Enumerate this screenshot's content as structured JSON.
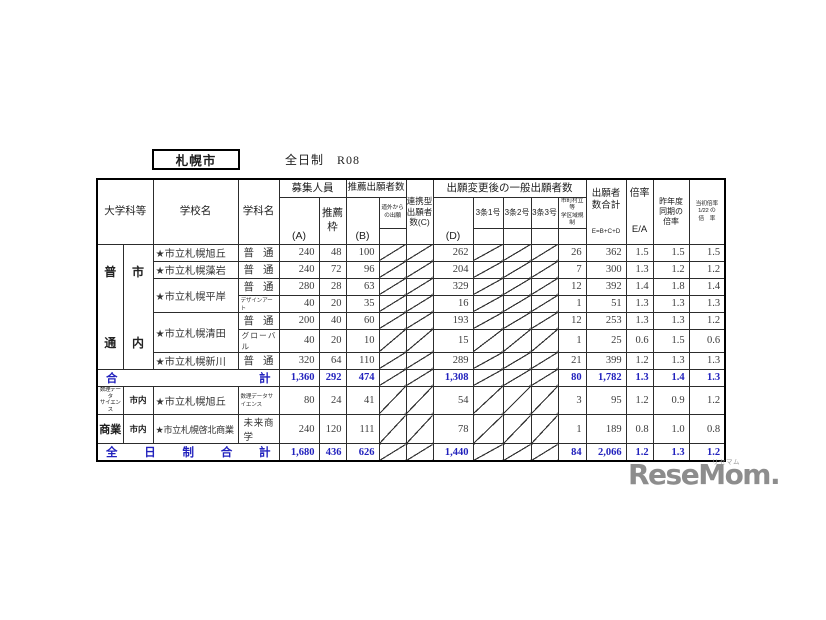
{
  "title": {
    "region": "札幌市",
    "note": "全日制　R08"
  },
  "colors": {
    "total_blue": "#2222bd",
    "border_black": "#2c2c2c",
    "logo_gray": "#8d8d8d"
  },
  "header": {
    "dept": "大学科等",
    "school": "学校名",
    "subject": "学科名",
    "recruit": "募集人員",
    "recruit_a": "(A)",
    "suisen_waku": "推薦\n枠",
    "suisen_count": "推薦出願者数",
    "suisen_b": "(B)",
    "dogai": "道外から\nの出願",
    "renkei": "連携型\n出願者\n数(C)",
    "after_change": "出願変更後の一般出願者数",
    "d": "(D)",
    "jo1": "3条1号",
    "jo2": "3条2号",
    "jo3": "3条3号",
    "municipal": "市町村立等\n学区域規制",
    "total": "出願者\n数合計",
    "total_formula": "E=B+C+D",
    "ratio": "倍率",
    "ratio_formula": "E/A",
    "last_year": "昨年度\n同期の\n倍率",
    "initial": "当初倍率\n1/22 の\n倍　率"
  },
  "groups": {
    "futsu_dept": "普通",
    "futsu_area": "市内"
  },
  "rows": [
    {
      "school": "★市立札幌旭丘",
      "subject": "普通",
      "a": "240",
      "waku": "48",
      "b": "100",
      "d": "262",
      "city": "26",
      "e": "362",
      "ea": "1.5",
      "last": "1.5",
      "init": "1.5"
    },
    {
      "school": "★市立札幌藻岩",
      "subject": "普通",
      "a": "240",
      "waku": "72",
      "b": "96",
      "d": "204",
      "city": "7",
      "e": "300",
      "ea": "1.3",
      "last": "1.2",
      "init": "1.2"
    },
    {
      "school": "★市立札幌平岸",
      "subject": "普通",
      "a": "280",
      "waku": "28",
      "b": "63",
      "d": "329",
      "city": "12",
      "e": "392",
      "ea": "1.4",
      "last": "1.8",
      "init": "1.4"
    },
    {
      "subject": "デザインアート",
      "a": "40",
      "waku": "20",
      "b": "35",
      "d": "16",
      "city": "1",
      "e": "51",
      "ea": "1.3",
      "last": "1.3",
      "init": "1.3"
    },
    {
      "school": "★市立札幌清田",
      "subject": "普通",
      "a": "200",
      "waku": "40",
      "b": "60",
      "d": "193",
      "city": "12",
      "e": "253",
      "ea": "1.3",
      "last": "1.3",
      "init": "1.2"
    },
    {
      "subject": "グローバル",
      "a": "40",
      "waku": "20",
      "b": "10",
      "d": "15",
      "city": "1",
      "e": "25",
      "ea": "0.6",
      "last": "1.5",
      "init": "0.6"
    },
    {
      "school": "★市立札幌新川",
      "subject": "普通",
      "a": "320",
      "waku": "64",
      "b": "110",
      "d": "289",
      "city": "21",
      "e": "399",
      "ea": "1.2",
      "last": "1.3",
      "init": "1.3"
    },
    {
      "label": "合計",
      "a": "1,360",
      "waku": "292",
      "b": "474",
      "d": "1,308",
      "city": "80",
      "e": "1,782",
      "ea": "1.3",
      "last": "1.4",
      "init": "1.3"
    },
    {
      "dept": "数理データ\nサイエンス",
      "area": "市内",
      "school": "★市立札幌旭丘",
      "subject": "数理データサイエンス",
      "a": "80",
      "waku": "24",
      "b": "41",
      "d": "54",
      "city": "3",
      "e": "95",
      "ea": "1.2",
      "last": "0.9",
      "init": "1.2"
    },
    {
      "dept": "商業",
      "area": "市内",
      "school": "★市立札幌啓北商業",
      "subject": "未来商学",
      "a": "240",
      "waku": "120",
      "b": "111",
      "d": "78",
      "city": "1",
      "e": "189",
      "ea": "0.8",
      "last": "1.0",
      "init": "0.8"
    },
    {
      "label": "全日制合計",
      "a": "1,680",
      "waku": "436",
      "b": "626",
      "d": "1,440",
      "city": "84",
      "e": "2,066",
      "ea": "1.2",
      "last": "1.3",
      "init": "1.2"
    }
  ],
  "logo": {
    "text": "ReseMom.",
    "ruby": "リセマム"
  }
}
